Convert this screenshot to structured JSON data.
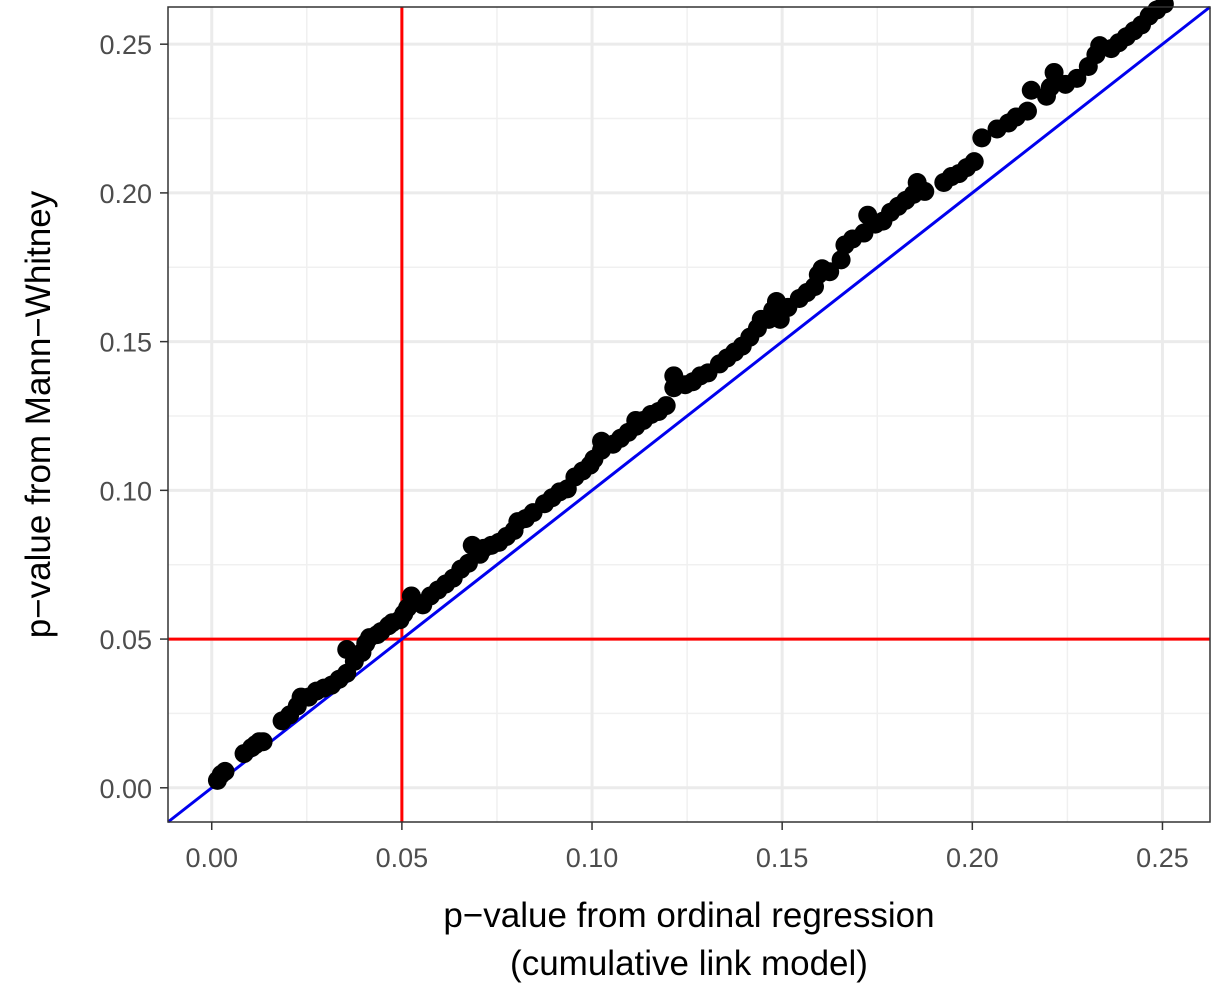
{
  "chart_data": {
    "type": "scatter",
    "title": "",
    "xlabel_lines": [
      "p−value from ordinal regression",
      "(cumulative link model)"
    ],
    "ylabel": "p−value from Mann−Whitney",
    "xlim": [
      -0.0115,
      0.2625
    ],
    "ylim": [
      -0.0115,
      0.2625
    ],
    "x_ticks": [
      0.0,
      0.05,
      0.1,
      0.15,
      0.2,
      0.25
    ],
    "x_tick_labels": [
      "0.00",
      "0.05",
      "0.10",
      "0.15",
      "0.20",
      "0.25"
    ],
    "y_ticks": [
      0.0,
      0.05,
      0.1,
      0.15,
      0.2,
      0.25
    ],
    "y_tick_labels": [
      "0.00",
      "0.05",
      "0.10",
      "0.15",
      "0.20",
      "0.25"
    ],
    "grid": true,
    "reference_lines": [
      {
        "kind": "vertical",
        "x": 0.05,
        "color": "#ff0000"
      },
      {
        "kind": "horizontal",
        "y": 0.05,
        "color": "#ff0000"
      },
      {
        "kind": "identity",
        "slope": 1,
        "intercept": 0,
        "color": "#0000ee"
      }
    ],
    "point_color": "#000000",
    "points": [
      [
        0.0015,
        0.0025
      ],
      [
        0.0025,
        0.0045
      ],
      [
        0.0035,
        0.0055
      ],
      [
        0.0085,
        0.0115
      ],
      [
        0.0105,
        0.0135
      ],
      [
        0.0115,
        0.0145
      ],
      [
        0.0125,
        0.0155
      ],
      [
        0.0135,
        0.0155
      ],
      [
        0.0185,
        0.0225
      ],
      [
        0.0205,
        0.0245
      ],
      [
        0.0225,
        0.0275
      ],
      [
        0.0235,
        0.0305
      ],
      [
        0.0255,
        0.0305
      ],
      [
        0.0275,
        0.0325
      ],
      [
        0.0295,
        0.0335
      ],
      [
        0.0315,
        0.0345
      ],
      [
        0.0335,
        0.0365
      ],
      [
        0.0355,
        0.0385
      ],
      [
        0.0355,
        0.0465
      ],
      [
        0.0375,
        0.0425
      ],
      [
        0.0395,
        0.0455
      ],
      [
        0.0405,
        0.0485
      ],
      [
        0.0415,
        0.0505
      ],
      [
        0.0435,
        0.0515
      ],
      [
        0.0445,
        0.0525
      ],
      [
        0.0465,
        0.0545
      ],
      [
        0.0475,
        0.0555
      ],
      [
        0.0495,
        0.0565
      ],
      [
        0.0505,
        0.0585
      ],
      [
        0.0515,
        0.0605
      ],
      [
        0.0525,
        0.0645
      ],
      [
        0.0535,
        0.0625
      ],
      [
        0.0555,
        0.0615
      ],
      [
        0.0575,
        0.0645
      ],
      [
        0.0595,
        0.0665
      ],
      [
        0.0615,
        0.0685
      ],
      [
        0.0635,
        0.0705
      ],
      [
        0.0655,
        0.0735
      ],
      [
        0.0675,
        0.0755
      ],
      [
        0.0685,
        0.0815
      ],
      [
        0.0705,
        0.0785
      ],
      [
        0.0715,
        0.0805
      ],
      [
        0.0735,
        0.0815
      ],
      [
        0.0755,
        0.0825
      ],
      [
        0.0775,
        0.0845
      ],
      [
        0.0795,
        0.0865
      ],
      [
        0.0805,
        0.0895
      ],
      [
        0.0825,
        0.0905
      ],
      [
        0.0845,
        0.0925
      ],
      [
        0.0875,
        0.0955
      ],
      [
        0.0895,
        0.0975
      ],
      [
        0.0915,
        0.0995
      ],
      [
        0.0935,
        0.1005
      ],
      [
        0.0955,
        0.1045
      ],
      [
        0.0975,
        0.1065
      ],
      [
        0.0995,
        0.1085
      ],
      [
        0.1005,
        0.1105
      ],
      [
        0.1025,
        0.1135
      ],
      [
        0.1025,
        0.1165
      ],
      [
        0.1055,
        0.1155
      ],
      [
        0.1075,
        0.1175
      ],
      [
        0.1095,
        0.1195
      ],
      [
        0.1115,
        0.1215
      ],
      [
        0.1115,
        0.1235
      ],
      [
        0.1135,
        0.1235
      ],
      [
        0.1155,
        0.1255
      ],
      [
        0.1175,
        0.1265
      ],
      [
        0.1195,
        0.1285
      ],
      [
        0.1215,
        0.1345
      ],
      [
        0.1215,
        0.1385
      ],
      [
        0.1245,
        0.1355
      ],
      [
        0.1265,
        0.1365
      ],
      [
        0.1285,
        0.1385
      ],
      [
        0.1305,
        0.1395
      ],
      [
        0.1335,
        0.1425
      ],
      [
        0.1355,
        0.1445
      ],
      [
        0.1375,
        0.1465
      ],
      [
        0.1395,
        0.1485
      ],
      [
        0.1415,
        0.1515
      ],
      [
        0.1435,
        0.1545
      ],
      [
        0.1445,
        0.1575
      ],
      [
        0.1465,
        0.1575
      ],
      [
        0.1475,
        0.1605
      ],
      [
        0.1485,
        0.1635
      ],
      [
        0.1495,
        0.1575
      ],
      [
        0.1515,
        0.1615
      ],
      [
        0.1545,
        0.1645
      ],
      [
        0.1565,
        0.1665
      ],
      [
        0.1585,
        0.1685
      ],
      [
        0.1595,
        0.1725
      ],
      [
        0.1605,
        0.1745
      ],
      [
        0.1625,
        0.1735
      ],
      [
        0.1655,
        0.1775
      ],
      [
        0.1665,
        0.1825
      ],
      [
        0.1685,
        0.1845
      ],
      [
        0.1715,
        0.1865
      ],
      [
        0.1725,
        0.1925
      ],
      [
        0.1745,
        0.1895
      ],
      [
        0.1765,
        0.1905
      ],
      [
        0.1785,
        0.1935
      ],
      [
        0.1805,
        0.1955
      ],
      [
        0.1825,
        0.1975
      ],
      [
        0.1845,
        0.1995
      ],
      [
        0.1855,
        0.2035
      ],
      [
        0.1875,
        0.2005
      ],
      [
        0.1925,
        0.2035
      ],
      [
        0.1945,
        0.2055
      ],
      [
        0.1965,
        0.2065
      ],
      [
        0.1985,
        0.2085
      ],
      [
        0.2005,
        0.2105
      ],
      [
        0.2025,
        0.2185
      ],
      [
        0.2065,
        0.2215
      ],
      [
        0.2095,
        0.2235
      ],
      [
        0.2115,
        0.2255
      ],
      [
        0.2145,
        0.2275
      ],
      [
        0.2155,
        0.2345
      ],
      [
        0.2195,
        0.2325
      ],
      [
        0.2205,
        0.2355
      ],
      [
        0.2215,
        0.2405
      ],
      [
        0.2245,
        0.2365
      ],
      [
        0.2275,
        0.2385
      ],
      [
        0.2305,
        0.2425
      ],
      [
        0.2325,
        0.2465
      ],
      [
        0.2335,
        0.2495
      ],
      [
        0.2365,
        0.2485
      ],
      [
        0.2385,
        0.2505
      ],
      [
        0.2405,
        0.2525
      ],
      [
        0.2425,
        0.2545
      ],
      [
        0.2445,
        0.2565
      ],
      [
        0.2465,
        0.2595
      ],
      [
        0.2485,
        0.2615
      ],
      [
        0.2505,
        0.2635
      ]
    ]
  }
}
